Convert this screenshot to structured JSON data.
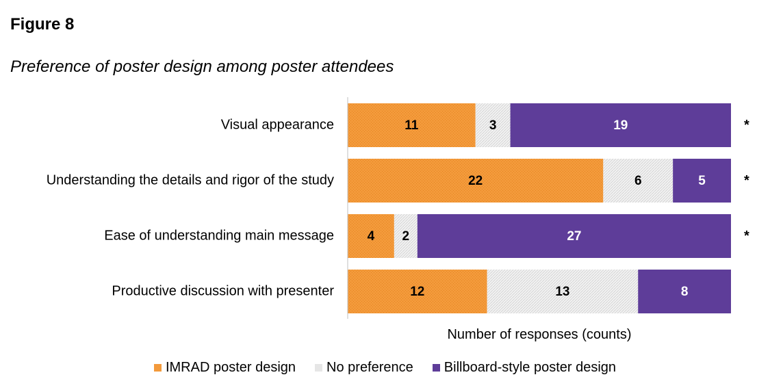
{
  "figure_label": "Figure 8",
  "figure_title": "Preference of poster design among poster attendees",
  "chart_data": {
    "type": "bar",
    "orientation": "horizontal",
    "stacked": true,
    "categories": [
      "Visual appearance",
      "Understanding the details and rigor of the study",
      "Ease of understanding main message",
      "Productive discussion with presenter"
    ],
    "series": [
      {
        "name": "IMRAD poster design",
        "values": [
          11,
          22,
          4,
          12
        ],
        "color": "#F39A3B",
        "label_color": "#000000"
      },
      {
        "name": "No preference",
        "values": [
          3,
          6,
          2,
          13
        ],
        "color": "#E6E6E6",
        "label_color": "#000000"
      },
      {
        "name": "Billboard-style poster design",
        "values": [
          19,
          5,
          27,
          8
        ],
        "color": "#5E3D99",
        "label_color": "#FFFFFF"
      }
    ],
    "significance": [
      "*",
      "*",
      "*",
      ""
    ],
    "xlabel": "Number of responses (counts)",
    "xlim": [
      0,
      33
    ],
    "legend_position": "bottom",
    "grid": false
  }
}
